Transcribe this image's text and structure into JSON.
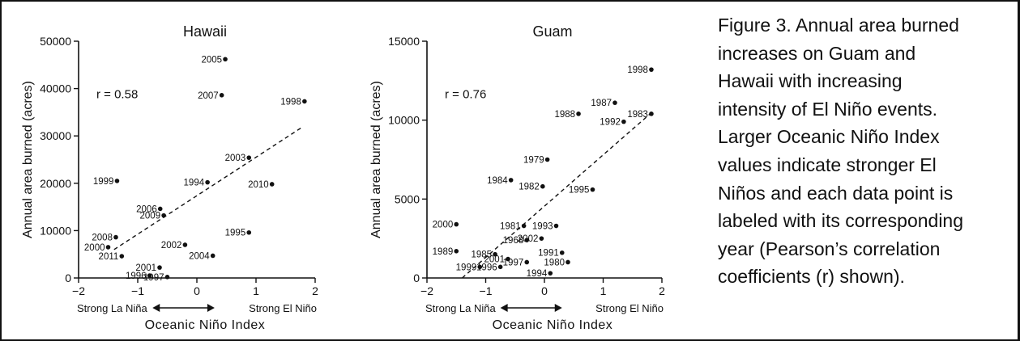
{
  "caption_lines": [
    "Figure 3. Annual area burned",
    "increases on Guam and",
    "Hawaii with increasing",
    "intensity of El Niño events.",
    "Larger Oceanic Niño Index",
    "values indicate stronger El",
    "Niños and each data point is",
    "labeled with its corresponding",
    "year (Pearson’s correlation",
    "coefficients (r) shown)."
  ],
  "chart_data": [
    {
      "type": "scatter",
      "title": "Hawaii",
      "xlabel": "Oceanic Niño Index",
      "ylabel": "Annual area burned (acres)",
      "xlim": [
        -2,
        2
      ],
      "ylim": [
        0,
        50000
      ],
      "xticks": [
        "−2",
        "−1",
        "0",
        "1",
        "2"
      ],
      "yticks": [
        "0",
        "10000",
        "20000",
        "30000",
        "40000",
        "50000"
      ],
      "annotation": "r = 0.58",
      "scale_left": "Strong La Niña",
      "scale_right": "Strong El Niño",
      "trend": {
        "x1": -1.4,
        "y1": 6000,
        "x2": 1.8,
        "y2": 32000
      },
      "points": [
        {
          "label": "2005",
          "x": 0.48,
          "y": 46200
        },
        {
          "label": "2007",
          "x": 0.42,
          "y": 38600
        },
        {
          "label": "1998",
          "x": 1.82,
          "y": 37300
        },
        {
          "label": "2003",
          "x": 0.88,
          "y": 25400
        },
        {
          "label": "1999",
          "x": -1.35,
          "y": 20500
        },
        {
          "label": "1994",
          "x": 0.18,
          "y": 20200
        },
        {
          "label": "2010",
          "x": 1.27,
          "y": 19800
        },
        {
          "label": "2006",
          "x": -0.62,
          "y": 14600
        },
        {
          "label": "2009",
          "x": -0.56,
          "y": 13200
        },
        {
          "label": "1995",
          "x": 0.88,
          "y": 9600
        },
        {
          "label": "2008",
          "x": -1.37,
          "y": 8600
        },
        {
          "label": "2002",
          "x": -0.2,
          "y": 7000
        },
        {
          "label": "2000",
          "x": -1.5,
          "y": 6500
        },
        {
          "label": "2011",
          "x": -1.27,
          "y": 4600
        },
        {
          "label": "2004",
          "x": 0.27,
          "y": 4700
        },
        {
          "label": "2001",
          "x": -0.63,
          "y": 2200
        },
        {
          "label": "1996",
          "x": -0.8,
          "y": 500
        },
        {
          "label": "1997",
          "x": -0.5,
          "y": 200
        }
      ]
    },
    {
      "type": "scatter",
      "title": "Guam",
      "xlabel": "Oceanic Niño Index",
      "ylabel": "Annual area burned (acres)",
      "xlim": [
        -2,
        2
      ],
      "ylim": [
        0,
        15000
      ],
      "xticks": [
        "−2",
        "−1",
        "0",
        "1",
        "2"
      ],
      "yticks": [
        "0",
        "5000",
        "10000",
        "15000"
      ],
      "annotation": "r = 0.76",
      "scale_left": "Strong La Niña",
      "scale_right": "Strong El Niño",
      "trend": {
        "x1": -1.4,
        "y1": 0,
        "x2": 1.8,
        "y2": 10400
      },
      "points": [
        {
          "label": "1998",
          "x": 1.82,
          "y": 13200
        },
        {
          "label": "1987",
          "x": 1.2,
          "y": 11100
        },
        {
          "label": "1988",
          "x": 0.58,
          "y": 10400
        },
        {
          "label": "1992",
          "x": 1.35,
          "y": 9900
        },
        {
          "label": "1983",
          "x": 1.82,
          "y": 10400
        },
        {
          "label": "1979",
          "x": 0.05,
          "y": 7500
        },
        {
          "label": "1984",
          "x": -0.57,
          "y": 6200
        },
        {
          "label": "1982",
          "x": -0.03,
          "y": 5800
        },
        {
          "label": "1995",
          "x": 0.82,
          "y": 5600
        },
        {
          "label": "2000",
          "x": -1.5,
          "y": 3400
        },
        {
          "label": "1981",
          "x": -0.35,
          "y": 3300
        },
        {
          "label": "1993",
          "x": 0.2,
          "y": 3300
        },
        {
          "label": "1968",
          "x": -0.3,
          "y": 2400
        },
        {
          "label": "2002",
          "x": -0.05,
          "y": 2500
        },
        {
          "label": "1989",
          "x": -1.5,
          "y": 1700
        },
        {
          "label": "1991",
          "x": 0.3,
          "y": 1600
        },
        {
          "label": "1985",
          "x": -0.84,
          "y": 1500
        },
        {
          "label": "2001",
          "x": -0.62,
          "y": 1200
        },
        {
          "label": "1997",
          "x": -0.3,
          "y": 1000
        },
        {
          "label": "1980",
          "x": 0.4,
          "y": 1000
        },
        {
          "label": "1999",
          "x": -1.1,
          "y": 700
        },
        {
          "label": "1996",
          "x": -0.75,
          "y": 700
        },
        {
          "label": "1994",
          "x": 0.1,
          "y": 300
        }
      ]
    }
  ]
}
